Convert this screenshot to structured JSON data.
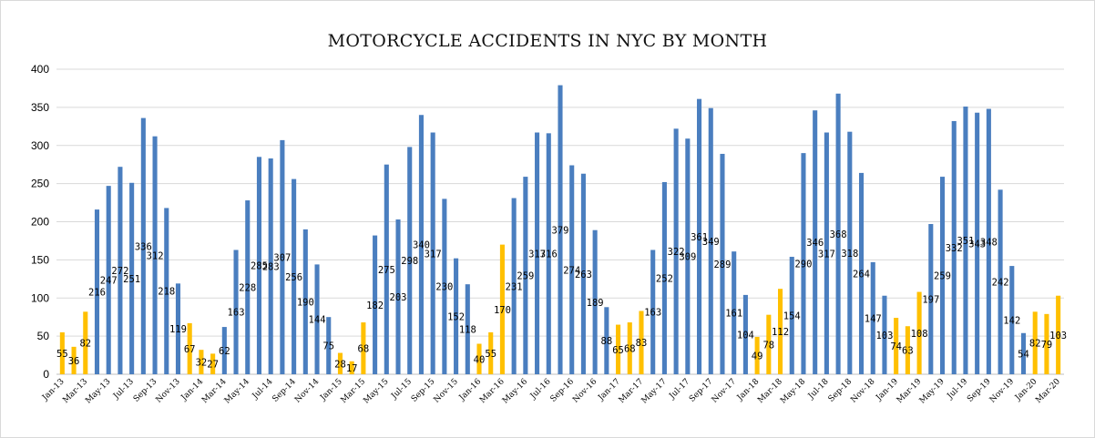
{
  "chart_data": {
    "type": "bar",
    "title": "MOTORCYCLE ACCIDENTS IN NYC BY MONTH",
    "xlabel": "",
    "ylabel": "",
    "ylim": [
      0,
      400
    ],
    "yticks": [
      0,
      50,
      100,
      150,
      200,
      250,
      300,
      350,
      400
    ],
    "grid": true,
    "legend": "none",
    "colors": {
      "warm_months": "#4a7ebf",
      "cold_months": "#ffc000",
      "grid": "#d9d9d9"
    },
    "categories": [
      "Jan-13",
      "Feb-13",
      "Mar-13",
      "Apr-13",
      "May-13",
      "Jun-13",
      "Jul-13",
      "Aug-13",
      "Sep-13",
      "Oct-13",
      "Nov-13",
      "Dec-13",
      "Jan-14",
      "Feb-14",
      "Mar-14",
      "Apr-14",
      "May-14",
      "Jun-14",
      "Jul-14",
      "Aug-14",
      "Sep-14",
      "Oct-14",
      "Nov-14",
      "Dec-14",
      "Jan-15",
      "Feb-15",
      "Mar-15",
      "Apr-15",
      "May-15",
      "Jun-15",
      "Jul-15",
      "Aug-15",
      "Sep-15",
      "Oct-15",
      "Nov-15",
      "Dec-15",
      "Jan-16",
      "Feb-16",
      "Mar-16",
      "Apr-16",
      "May-16",
      "Jun-16",
      "Jul-16",
      "Aug-16",
      "Sep-16",
      "Oct-16",
      "Nov-16",
      "Dec-16",
      "Jan-17",
      "Feb-17",
      "Mar-17",
      "Apr-17",
      "May-17",
      "Jun-17",
      "Jul-17",
      "Aug-17",
      "Sep-17",
      "Oct-17",
      "Nov-17",
      "Dec-17",
      "Jan-18",
      "Feb-18",
      "Mar-18",
      "Apr-18",
      "May-18",
      "Jun-18",
      "Jul-18",
      "Aug-18",
      "Sep-18",
      "Oct-18",
      "Nov-18",
      "Dec-18",
      "Jan-19",
      "Feb-19",
      "Mar-19",
      "Apr-19",
      "May-19",
      "Jun-19",
      "Jul-19",
      "Aug-19",
      "Sep-19",
      "Oct-19",
      "Nov-19",
      "Dec-19",
      "Jan-20",
      "Feb-20",
      "Mar-20"
    ],
    "xtick_labels": [
      "Jan-13",
      "Mar-13",
      "May-13",
      "Jul-13",
      "Sep-13",
      "Nov-13",
      "Jan-14",
      "Mar-14",
      "May-14",
      "Jul-14",
      "Sep-14",
      "Nov-14",
      "Jan-15",
      "Mar-15",
      "May-15",
      "Jul-15",
      "Sep-15",
      "Nov-15",
      "Jan-16",
      "Mar-16",
      "May-16",
      "Jul-16",
      "Sep-16",
      "Nov-16",
      "Jan-17",
      "Mar-17",
      "May-17",
      "Jul-17",
      "Sep-17",
      "Nov-17",
      "Jan-18",
      "Mar-18",
      "May-18",
      "Jul-18",
      "Sep-18",
      "Nov-18",
      "Jan-19",
      "Mar-19",
      "May-19",
      "Jul-19",
      "Sep-19",
      "Nov-19",
      "Jan-20",
      "Mar-20"
    ],
    "values": [
      55,
      36,
      82,
      216,
      247,
      272,
      251,
      336,
      312,
      218,
      119,
      67,
      32,
      27,
      62,
      163,
      228,
      285,
      283,
      307,
      256,
      190,
      144,
      75,
      28,
      17,
      68,
      182,
      275,
      203,
      298,
      340,
      317,
      230,
      152,
      118,
      40,
      55,
      170,
      231,
      259,
      317,
      316,
      379,
      274,
      263,
      189,
      88,
      65,
      68,
      83,
      163,
      252,
      322,
      309,
      361,
      349,
      289,
      161,
      104,
      49,
      78,
      112,
      154,
      290,
      346,
      317,
      368,
      318,
      264,
      147,
      103,
      74,
      63,
      108,
      197,
      259,
      332,
      351,
      343,
      348,
      242,
      142,
      54,
      82,
      79,
      103
    ],
    "cold_month_bars": [
      0,
      1,
      2,
      11,
      12,
      13,
      24,
      25,
      26,
      36,
      37,
      38,
      48,
      49,
      50,
      60,
      61,
      62,
      72,
      73,
      74,
      84,
      85,
      86
    ]
  }
}
